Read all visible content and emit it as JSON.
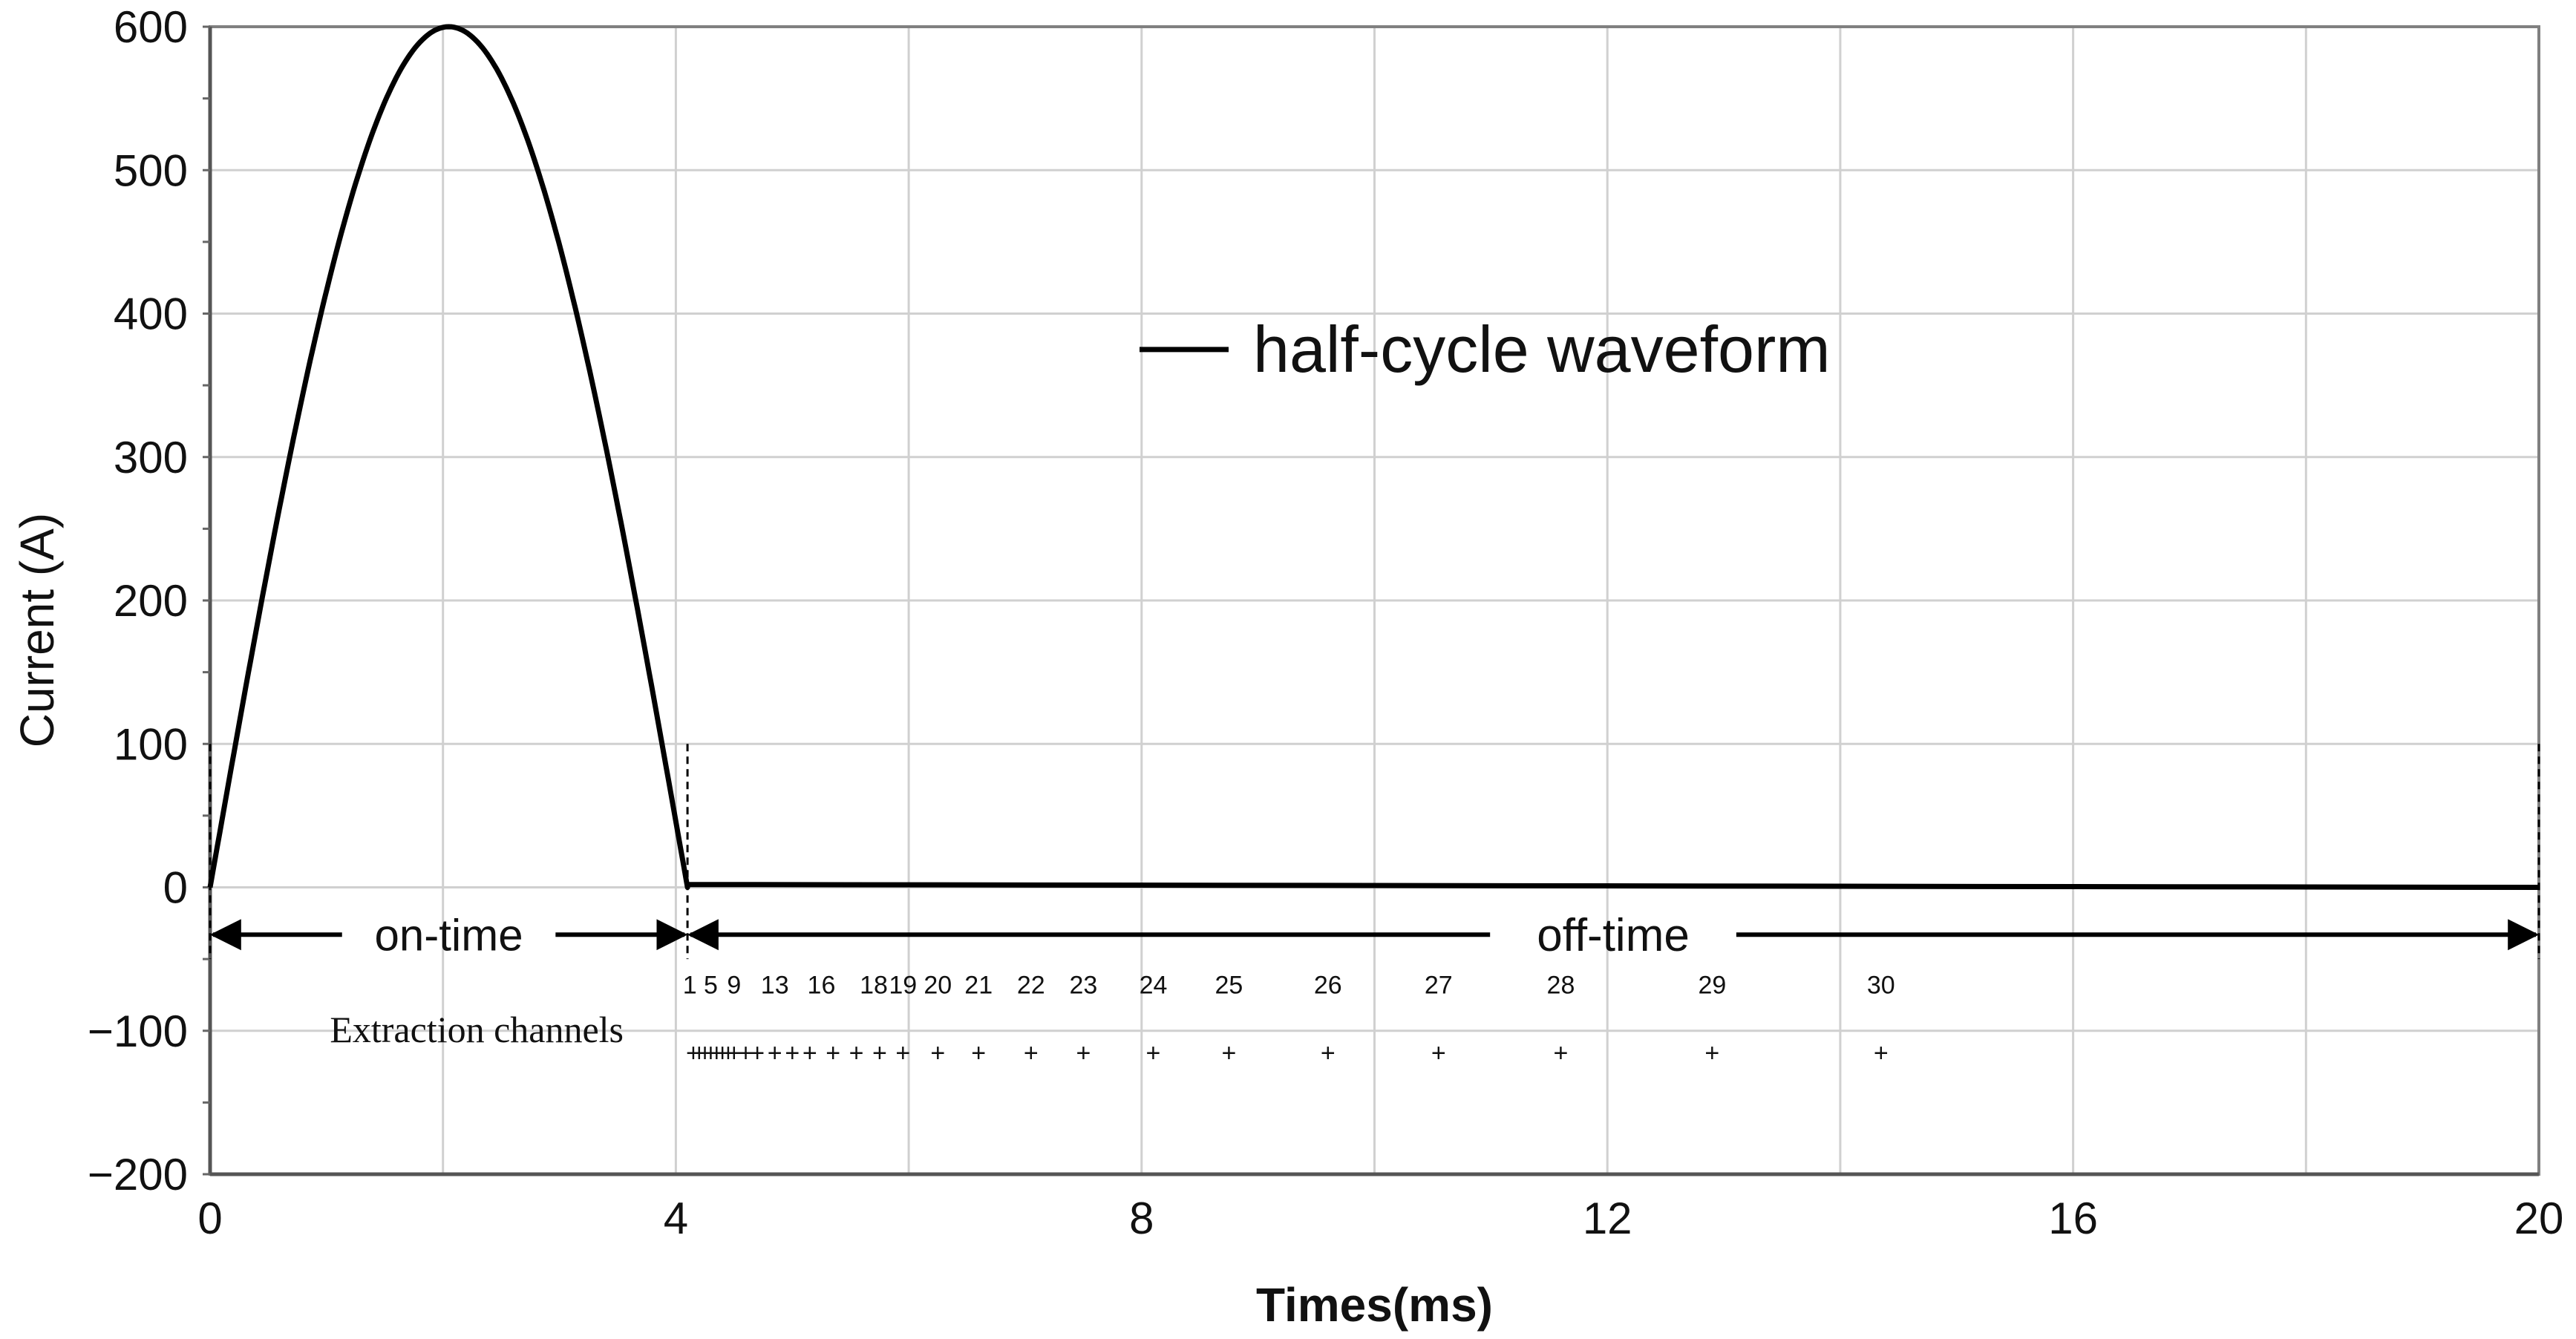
{
  "chart_data": {
    "type": "line",
    "title": "",
    "xlabel": "Times(ms)",
    "ylabel": "Current (A)",
    "xlim": [
      0,
      20
    ],
    "ylim": [
      -200,
      600
    ],
    "xticks": [
      0,
      4,
      8,
      12,
      16,
      20
    ],
    "yticks": [
      -200,
      -100,
      0,
      100,
      200,
      300,
      400,
      500,
      600
    ],
    "grid": true,
    "legend": {
      "position": "top-center",
      "entries": [
        "half-cycle waveform"
      ]
    },
    "series": [
      {
        "name": "half-cycle waveform",
        "shape": "half-sine pulse",
        "on_time_ms": [
          0,
          4.1
        ],
        "peak": {
          "x": 2.0,
          "y": 600
        },
        "off_time_points": [
          [
            4.1,
            2
          ],
          [
            20,
            0
          ]
        ]
      }
    ],
    "annotations": {
      "on_time_label": "on-time",
      "on_time_span": [
        0,
        4.1
      ],
      "off_time_label": "off-time",
      "off_time_span": [
        4.1,
        20
      ],
      "arrow_level": -33,
      "markers_at": [
        0,
        4.1,
        20
      ]
    },
    "extraction_channels": {
      "label": "Extraction channels",
      "marker_level": -110,
      "marker_symbol": "+",
      "labeled": [
        {
          "label": "1",
          "time": 4.12
        },
        {
          "label": "5",
          "time": 4.3
        },
        {
          "label": "9",
          "time": 4.5
        },
        {
          "label": "13",
          "time": 4.85
        },
        {
          "label": "16",
          "time": 5.25
        },
        {
          "label": "18",
          "time": 5.7
        },
        {
          "label": "19",
          "time": 5.95
        },
        {
          "label": "20",
          "time": 6.25
        },
        {
          "label": "21",
          "time": 6.6
        },
        {
          "label": "22",
          "time": 7.05
        },
        {
          "label": "23",
          "time": 7.5
        },
        {
          "label": "24",
          "time": 8.1
        },
        {
          "label": "25",
          "time": 8.75
        },
        {
          "label": "26",
          "time": 9.6
        },
        {
          "label": "27",
          "time": 10.55
        },
        {
          "label": "28",
          "time": 11.6
        },
        {
          "label": "29",
          "time": 12.9
        },
        {
          "label": "30",
          "time": 14.35
        }
      ],
      "marker_times": [
        4.15,
        4.2,
        4.25,
        4.3,
        4.35,
        4.4,
        4.45,
        4.5,
        4.6,
        4.7,
        4.85,
        5.0,
        5.15,
        5.35,
        5.55,
        5.75,
        5.95,
        6.25,
        6.6,
        7.05,
        7.5,
        8.1,
        8.75,
        9.6,
        10.55,
        11.6,
        12.9,
        14.35
      ]
    }
  }
}
